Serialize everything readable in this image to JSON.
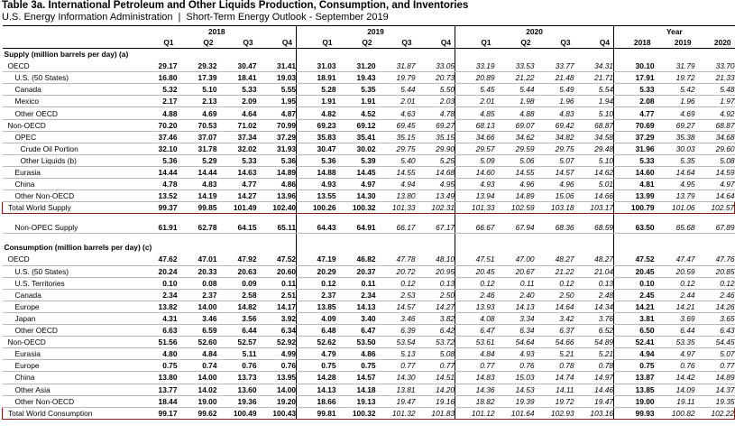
{
  "header": {
    "title": "Table 3a. International Petroleum and Other Liquids Production, Consumption, and Inventories",
    "source": "U.S. Energy Information Administration",
    "separator": "|",
    "report": "Short-Term Energy Outlook - September 2019"
  },
  "columns": {
    "years": [
      "2018",
      "2019",
      "2020",
      "Year"
    ],
    "quarters": [
      "Q1",
      "Q2",
      "Q3",
      "Q4",
      "Q1",
      "Q2",
      "Q3",
      "Q4",
      "Q1",
      "Q2",
      "Q3",
      "Q4",
      "2018",
      "2019",
      "2020"
    ]
  },
  "supply": {
    "heading": "Supply (million barrels per day) (a)",
    "rows": [
      {
        "label": "OECD",
        "indent": 0,
        "bold_q": 6,
        "values": [
          "29.17",
          "29.32",
          "30.47",
          "31.41",
          "31.03",
          "31.20",
          "31.87",
          "33.05",
          "33.19",
          "33.53",
          "33.77",
          "34.31",
          "30.10",
          "31.79",
          "33.70"
        ]
      },
      {
        "label": "U.S. (50 States)",
        "indent": 1,
        "bold_q": 6,
        "values": [
          "16.80",
          "17.39",
          "18.41",
          "19.03",
          "18.91",
          "19.43",
          "19.79",
          "20.73",
          "20.89",
          "21.22",
          "21.48",
          "21.71",
          "17.91",
          "19.72",
          "21.33"
        ]
      },
      {
        "label": "Canada",
        "indent": 1,
        "bold_q": 6,
        "values": [
          "5.32",
          "5.10",
          "5.33",
          "5.55",
          "5.28",
          "5.35",
          "5.44",
          "5.50",
          "5.45",
          "5.44",
          "5.49",
          "5.54",
          "5.33",
          "5.42",
          "5.48"
        ]
      },
      {
        "label": "Mexico",
        "indent": 1,
        "bold_q": 6,
        "values": [
          "2.17",
          "2.13",
          "2.09",
          "1.95",
          "1.91",
          "1.91",
          "2.01",
          "2.03",
          "2.01",
          "1.98",
          "1.96",
          "1.94",
          "2.08",
          "1.96",
          "1.97"
        ]
      },
      {
        "label": "Other OECD",
        "indent": 1,
        "bold_q": 6,
        "values": [
          "4.88",
          "4.69",
          "4.64",
          "4.87",
          "4.82",
          "4.52",
          "4.63",
          "4.78",
          "4.85",
          "4.88",
          "4.83",
          "5.10",
          "4.77",
          "4.69",
          "4.92"
        ]
      },
      {
        "label": "Non-OECD",
        "indent": 0,
        "bold_q": 6,
        "values": [
          "70.20",
          "70.53",
          "71.02",
          "70.99",
          "69.23",
          "69.12",
          "69.45",
          "69.27",
          "68.13",
          "69.07",
          "69.42",
          "68.87",
          "70.69",
          "69.27",
          "68.87"
        ]
      },
      {
        "label": "OPEC",
        "indent": 1,
        "bold_q": 6,
        "values": [
          "37.46",
          "37.07",
          "37.34",
          "37.29",
          "35.83",
          "35.41",
          "35.15",
          "35.15",
          "34.66",
          "34.62",
          "34.82",
          "34.58",
          "37.29",
          "35.38",
          "34.68"
        ]
      },
      {
        "label": "Crude Oil Portion",
        "indent": 2,
        "bold_q": 6,
        "values": [
          "32.10",
          "31.78",
          "32.02",
          "31.93",
          "30.47",
          "30.02",
          "29.75",
          "29.90",
          "29.57",
          "29.59",
          "29.75",
          "29.48",
          "31.96",
          "30.03",
          "29.60"
        ]
      },
      {
        "label": "Other Liquids (b)",
        "indent": 2,
        "bold_q": 6,
        "values": [
          "5.36",
          "5.29",
          "5.33",
          "5.36",
          "5.36",
          "5.39",
          "5.40",
          "5.25",
          "5.09",
          "5.06",
          "5.07",
          "5.10",
          "5.33",
          "5.35",
          "5.08"
        ]
      },
      {
        "label": "Eurasia",
        "indent": 1,
        "bold_q": 6,
        "values": [
          "14.44",
          "14.44",
          "14.63",
          "14.89",
          "14.88",
          "14.45",
          "14.55",
          "14.68",
          "14.60",
          "14.55",
          "14.57",
          "14.62",
          "14.60",
          "14.64",
          "14.59"
        ]
      },
      {
        "label": "China",
        "indent": 1,
        "bold_q": 6,
        "values": [
          "4.78",
          "4.83",
          "4.77",
          "4.86",
          "4.93",
          "4.97",
          "4.94",
          "4.95",
          "4.93",
          "4.96",
          "4.96",
          "5.01",
          "4.81",
          "4.95",
          "4.97"
        ]
      },
      {
        "label": "Other Non-OECD",
        "indent": 1,
        "bold_q": 6,
        "values": [
          "13.52",
          "14.19",
          "14.27",
          "13.96",
          "13.55",
          "14.30",
          "13.80",
          "13.49",
          "13.94",
          "14.89",
          "15.06",
          "14.66",
          "13.99",
          "13.79",
          "14.64"
        ]
      }
    ],
    "total": {
      "label": "Total World Supply",
      "values": [
        "99.37",
        "99.85",
        "101.49",
        "102.40",
        "100.26",
        "100.32",
        "101.33",
        "102.31",
        "101.33",
        "102.59",
        "103.18",
        "103.17",
        "100.79",
        "101.06",
        "102.57"
      ]
    },
    "nonopec": {
      "label": "Non-OPEC Supply",
      "values": [
        "61.91",
        "62.78",
        "64.15",
        "65.11",
        "64.43",
        "64.91",
        "66.17",
        "67.17",
        "66.67",
        "67.94",
        "68.36",
        "68.59",
        "63.50",
        "65.68",
        "67.89"
      ]
    }
  },
  "consumption": {
    "heading": "Consumption (million barrels per day) (c)",
    "rows": [
      {
        "label": "OECD",
        "indent": 0,
        "values": [
          "47.62",
          "47.01",
          "47.92",
          "47.52",
          "47.19",
          "46.82",
          "47.78",
          "48.10",
          "47.51",
          "47.00",
          "48.27",
          "48.27",
          "47.52",
          "47.47",
          "47.76"
        ]
      },
      {
        "label": "U.S. (50 States)",
        "indent": 1,
        "values": [
          "20.24",
          "20.33",
          "20.63",
          "20.60",
          "20.29",
          "20.37",
          "20.72",
          "20.95",
          "20.45",
          "20.67",
          "21.22",
          "21.04",
          "20.45",
          "20.59",
          "20.85"
        ]
      },
      {
        "label": "U.S. Territories",
        "indent": 1,
        "values": [
          "0.10",
          "0.08",
          "0.09",
          "0.11",
          "0.12",
          "0.11",
          "0.12",
          "0.13",
          "0.12",
          "0.11",
          "0.12",
          "0.13",
          "0.10",
          "0.12",
          "0.12"
        ]
      },
      {
        "label": "Canada",
        "indent": 1,
        "values": [
          "2.34",
          "2.37",
          "2.58",
          "2.51",
          "2.37",
          "2.34",
          "2.53",
          "2.50",
          "2.46",
          "2.40",
          "2.50",
          "2.48",
          "2.45",
          "2.44",
          "2.46"
        ]
      },
      {
        "label": "Europe",
        "indent": 1,
        "values": [
          "13.82",
          "14.00",
          "14.82",
          "14.17",
          "13.85",
          "14.13",
          "14.57",
          "14.27",
          "13.93",
          "14.13",
          "14.64",
          "14.34",
          "14.21",
          "14.21",
          "14.26"
        ]
      },
      {
        "label": "Japan",
        "indent": 1,
        "values": [
          "4.31",
          "3.46",
          "3.56",
          "3.92",
          "4.09",
          "3.40",
          "3.46",
          "3.82",
          "4.08",
          "3.34",
          "3.42",
          "3.76",
          "3.81",
          "3.69",
          "3.65"
        ]
      },
      {
        "label": "Other OECD",
        "indent": 1,
        "values": [
          "6.63",
          "6.59",
          "6.44",
          "6.34",
          "6.48",
          "6.47",
          "6.39",
          "6.42",
          "6.47",
          "6.34",
          "6.37",
          "6.52",
          "6.50",
          "6.44",
          "6.43"
        ]
      },
      {
        "label": "Non-OECD",
        "indent": 0,
        "values": [
          "51.56",
          "52.60",
          "52.57",
          "52.92",
          "52.62",
          "53.50",
          "53.54",
          "53.72",
          "53.61",
          "54.64",
          "54.66",
          "54.89",
          "52.41",
          "53.35",
          "54.45"
        ]
      },
      {
        "label": "Eurasia",
        "indent": 1,
        "values": [
          "4.80",
          "4.84",
          "5.11",
          "4.99",
          "4.79",
          "4.86",
          "5.13",
          "5.08",
          "4.84",
          "4.93",
          "5.21",
          "5.21",
          "4.94",
          "4.97",
          "5.07"
        ]
      },
      {
        "label": "Europe",
        "indent": 1,
        "values": [
          "0.75",
          "0.74",
          "0.76",
          "0.76",
          "0.75",
          "0.75",
          "0.77",
          "0.77",
          "0.77",
          "0.76",
          "0.78",
          "0.78",
          "0.75",
          "0.76",
          "0.77"
        ]
      },
      {
        "label": "China",
        "indent": 1,
        "values": [
          "13.80",
          "14.00",
          "13.73",
          "13.95",
          "14.28",
          "14.57",
          "14.30",
          "14.51",
          "14.83",
          "15.03",
          "14.74",
          "14.97",
          "13.87",
          "14.42",
          "14.89"
        ]
      },
      {
        "label": "Other Asia",
        "indent": 1,
        "values": [
          "13.77",
          "14.02",
          "13.60",
          "14.00",
          "14.13",
          "14.18",
          "13.81",
          "14.20",
          "14.36",
          "14.53",
          "14.11",
          "14.46",
          "13.85",
          "14.09",
          "14.37"
        ]
      },
      {
        "label": "Other Non-OECD",
        "indent": 1,
        "values": [
          "18.44",
          "19.00",
          "19.36",
          "19.20",
          "18.66",
          "19.13",
          "19.47",
          "19.16",
          "18.82",
          "19.39",
          "19.72",
          "19.47",
          "19.00",
          "19.11",
          "19.35"
        ]
      }
    ],
    "total": {
      "label": "Total World Consumption",
      "values": [
        "99.17",
        "99.62",
        "100.49",
        "100.43",
        "99.81",
        "100.32",
        "101.32",
        "101.83",
        "101.12",
        "101.64",
        "102.93",
        "103.16",
        "99.93",
        "100.82",
        "102.22"
      ]
    }
  }
}
